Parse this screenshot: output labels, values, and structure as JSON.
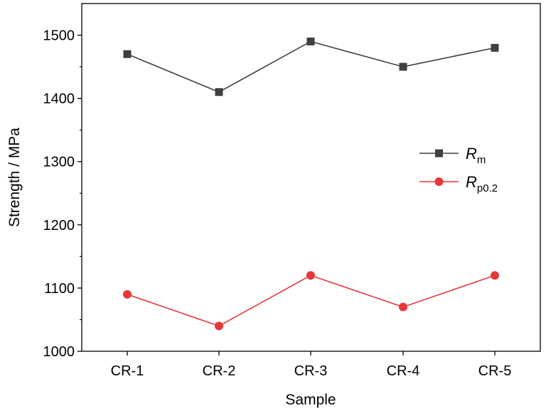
{
  "chart_data": {
    "type": "line",
    "categories": [
      "CR-1",
      "CR-2",
      "CR-3",
      "CR-4",
      "CR-5"
    ],
    "series": [
      {
        "name": "R",
        "subscript": "m",
        "marker": "square",
        "color": "#3f3f3f",
        "values": [
          1470,
          1410,
          1490,
          1450,
          1480
        ]
      },
      {
        "name": "R",
        "subscript": "p0.2",
        "marker": "circle",
        "color": "#e8373a",
        "values": [
          1090,
          1040,
          1120,
          1070,
          1120
        ]
      }
    ],
    "xlabel": "Sample",
    "ylabel": "Strength / MPa",
    "ylim": [
      1000,
      1550
    ],
    "yticks": [
      1000,
      1100,
      1200,
      1300,
      1400,
      1500
    ],
    "grid": false,
    "legend_position": "right"
  }
}
